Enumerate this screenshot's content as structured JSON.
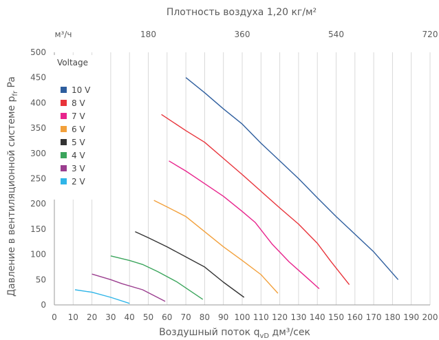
{
  "chart_data": {
    "type": "line",
    "top_title": "Плотность воздуха 1,20 кг/м²",
    "top_axis_unit": "м³/ч",
    "top_ticks": [
      180,
      360,
      540,
      720
    ],
    "xlabel": "Воздушный поток q_vD дм³/сек",
    "ylabel": "Давление в вентиляционной системе p_fr Pa",
    "xlim": [
      0,
      200
    ],
    "ylim": [
      0,
      500
    ],
    "x_ticks": [
      0,
      10,
      20,
      30,
      40,
      50,
      60,
      70,
      80,
      90,
      100,
      110,
      120,
      130,
      140,
      150,
      160,
      170,
      180,
      190,
      200
    ],
    "y_ticks": [
      0,
      50,
      100,
      150,
      200,
      250,
      300,
      350,
      400,
      450,
      500
    ],
    "grid": "vertical",
    "legend_title": "Voltage",
    "legend_position": "top-left",
    "series": [
      {
        "name": "10 V",
        "color": "#2E5E9E",
        "x": [
          70,
          80,
          90,
          100,
          110,
          120,
          130,
          140,
          150,
          160,
          170,
          183
        ],
        "y": [
          450,
          420,
          388,
          358,
          320,
          285,
          250,
          212,
          175,
          140,
          105,
          50
        ]
      },
      {
        "name": "8 V",
        "color": "#E8333A",
        "x": [
          57,
          70,
          80,
          90,
          100,
          110,
          120,
          130,
          140,
          147,
          157
        ],
        "y": [
          377,
          345,
          322,
          290,
          258,
          225,
          192,
          160,
          122,
          87,
          40
        ]
      },
      {
        "name": "7 V",
        "color": "#E8238C",
        "x": [
          61,
          70,
          80,
          90,
          100,
          107,
          116,
          125,
          135,
          141
        ],
        "y": [
          285,
          265,
          240,
          215,
          185,
          163,
          120,
          85,
          52,
          32
        ]
      },
      {
        "name": "6 V",
        "color": "#F2A03B",
        "x": [
          53,
          60,
          70,
          80,
          90,
          100,
          110,
          119
        ],
        "y": [
          207,
          194,
          175,
          145,
          115,
          88,
          60,
          23
        ]
      },
      {
        "name": "5 V",
        "color": "#333333",
        "x": [
          43,
          50,
          60,
          70,
          80,
          90,
          101
        ],
        "y": [
          145,
          133,
          115,
          95,
          75,
          45,
          15
        ]
      },
      {
        "name": "4 V",
        "color": "#3BA55C",
        "x": [
          30,
          40,
          47,
          55,
          65,
          79
        ],
        "y": [
          97,
          88,
          80,
          66,
          46,
          11
        ]
      },
      {
        "name": "3 V",
        "color": "#9B3E8F",
        "x": [
          20,
          30,
          36,
          47,
          59
        ],
        "y": [
          61,
          50,
          42,
          30,
          7
        ]
      },
      {
        "name": "2 V",
        "color": "#2FB5E8",
        "x": [
          11,
          20,
          30,
          40
        ],
        "y": [
          30,
          25,
          15,
          3
        ]
      }
    ]
  }
}
